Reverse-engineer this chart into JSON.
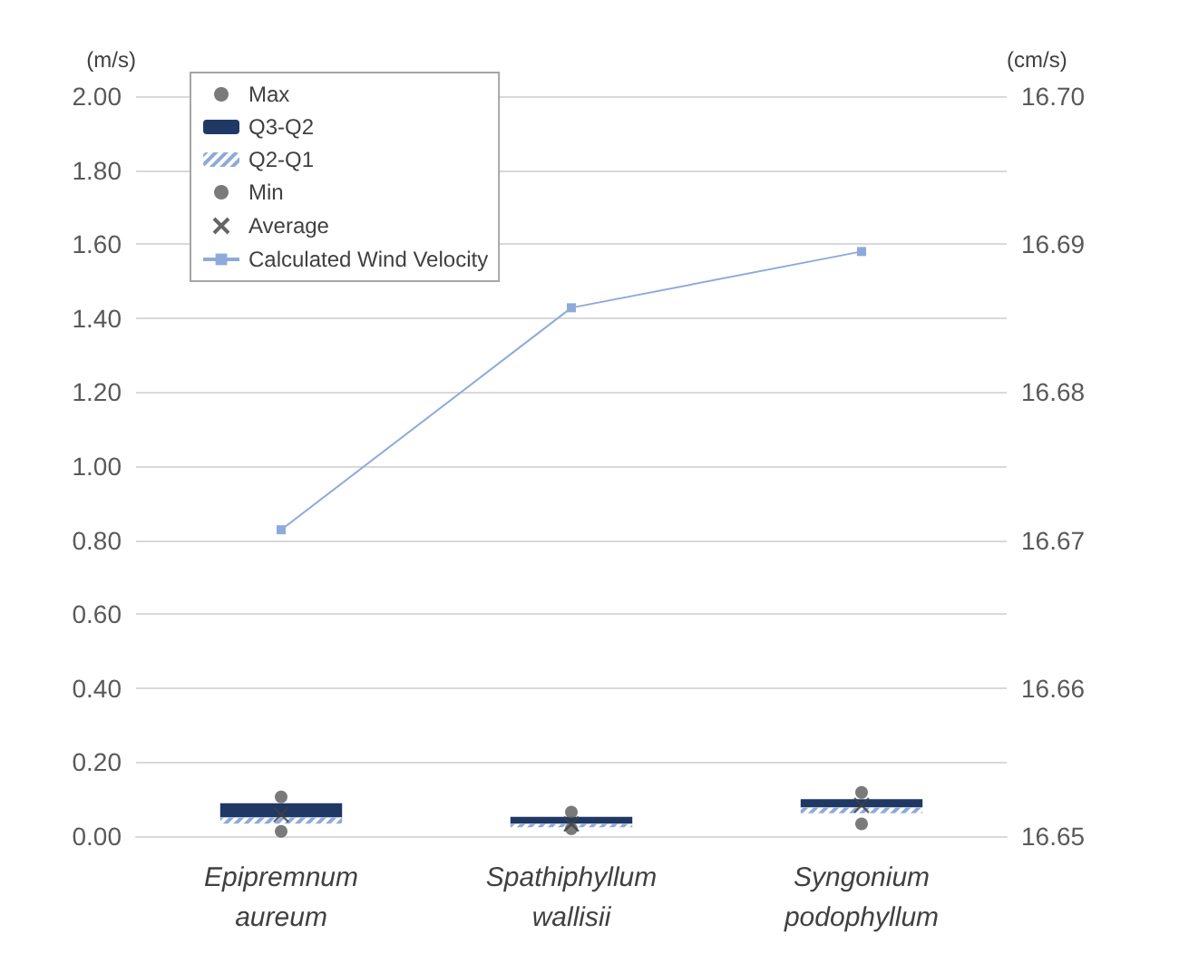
{
  "chart_data": {
    "type": "bar",
    "ylabel": "(m/s)",
    "y2label": "(cm/s)",
    "categories": [
      "Epipremnum\naureum",
      "Spathiphyllum\nwallisii",
      "Syngonium\npodophyllum"
    ],
    "series": [
      {
        "name": "Max",
        "type": "scatter",
        "marker": "circle",
        "color": "#595959",
        "values": [
          0.106,
          0.065,
          0.118
        ]
      },
      {
        "name": "Q3-Q2",
        "color": "#1f3864",
        "base": [
          0.05,
          0.033,
          0.077
        ],
        "values": [
          0.039,
          0.019,
          0.023
        ]
      },
      {
        "name": "Q2-Q1",
        "color": "#8eaadb",
        "base": [
          0.034,
          0.024,
          0.062
        ],
        "values": [
          0.016,
          0.009,
          0.015
        ]
      },
      {
        "name": "Min",
        "type": "scatter",
        "marker": "circle",
        "color": "#595959",
        "values": [
          0.013,
          0.02,
          0.033
        ]
      },
      {
        "name": "Average",
        "type": "scatter",
        "marker": "cross",
        "color": "#404040",
        "values": [
          0.058,
          0.033,
          0.083
        ]
      },
      {
        "name": "Calculated Wind Velocity",
        "type": "line",
        "axis": "y2",
        "marker": "square",
        "color": "#8eaadb",
        "values": [
          16.6707,
          16.6857,
          16.6895
        ]
      }
    ],
    "ylim": [
      0,
      2
    ],
    "yticks": [
      {
        "value": 0,
        "label": "0.00"
      },
      {
        "value": 0.2,
        "label": "0.20"
      },
      {
        "value": 0.4,
        "label": "0.40"
      },
      {
        "value": 0.6,
        "label": "0.60"
      },
      {
        "value": 0.8,
        "label": "0.80"
      },
      {
        "value": 1,
        "label": "1.00"
      },
      {
        "value": 1.2,
        "label": "1.20"
      },
      {
        "value": 1.4,
        "label": "1.40"
      },
      {
        "value": 1.6,
        "label": "1.60"
      },
      {
        "value": 1.8,
        "label": "1.80"
      },
      {
        "value": 2,
        "label": "2.00"
      }
    ],
    "y2lim": [
      16.65,
      16.7
    ],
    "y2ticks": [
      {
        "value": 16.65,
        "label": "16.65"
      },
      {
        "value": 16.66,
        "label": "16.66"
      },
      {
        "value": 16.67,
        "label": "16.67"
      },
      {
        "value": 16.68,
        "label": "16.68"
      },
      {
        "value": 16.69,
        "label": "16.69"
      },
      {
        "value": 16.7,
        "label": "16.70"
      }
    ],
    "grid": "y",
    "legend": "top left"
  }
}
